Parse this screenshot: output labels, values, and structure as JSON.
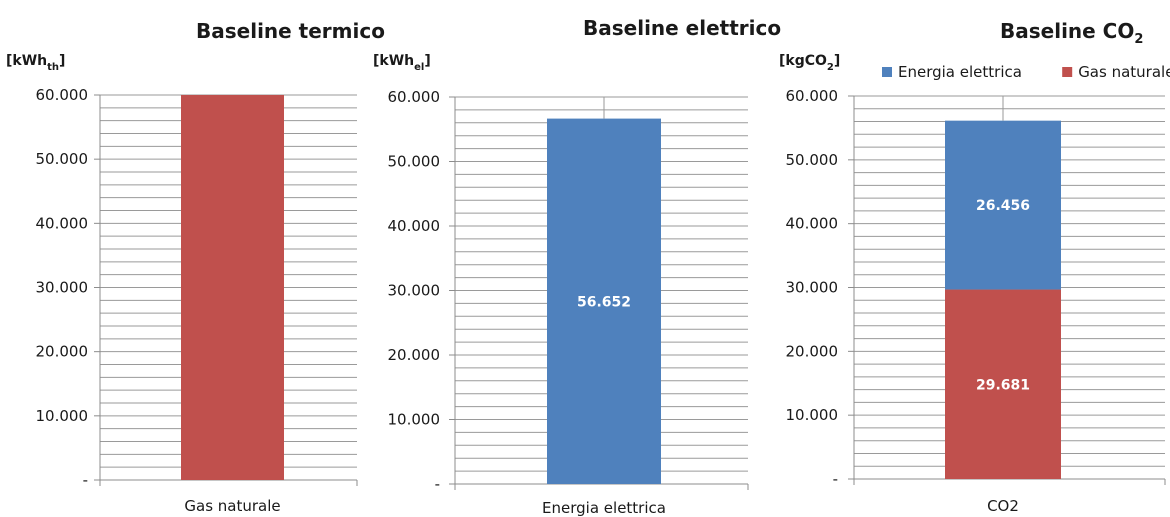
{
  "chart_data": [
    {
      "type": "bar",
      "title": "Baseline termico",
      "unit": "[kWh",
      "unit_sub": "th",
      "unit_suffix": "]",
      "categories": [
        "Gas naturale"
      ],
      "series": [
        {
          "name": "Gas naturale",
          "values": [
            60000
          ],
          "color": "#c0504d",
          "label": ""
        }
      ],
      "ylim": [
        0,
        60000
      ],
      "y_ticks": [
        "-",
        "10.000",
        "20.000",
        "30.000",
        "40.000",
        "50.000",
        "60.000"
      ],
      "grid": true,
      "legend": "none"
    },
    {
      "type": "bar",
      "title": "Baseline elettrico",
      "unit": "[kWh",
      "unit_sub": "el",
      "unit_suffix": "]",
      "categories": [
        "Energia elettrica"
      ],
      "series": [
        {
          "name": "Energia elettrica",
          "values": [
            56652
          ],
          "color": "#4f81bd",
          "label": "56.652"
        }
      ],
      "ylim": [
        0,
        60000
      ],
      "y_ticks": [
        "-",
        "10.000",
        "20.000",
        "30.000",
        "40.000",
        "50.000",
        "60.000"
      ],
      "grid": true,
      "legend": "none"
    },
    {
      "type": "bar",
      "stacked": true,
      "title": "Baseline CO",
      "title_sub": "2",
      "unit": "[kgCO",
      "unit_sub": "2",
      "unit_suffix": "]",
      "categories": [
        "CO2"
      ],
      "series": [
        {
          "name": "Gas naturale",
          "values": [
            29681
          ],
          "color": "#c0504d",
          "label": "29.681"
        },
        {
          "name": "Energia elettrica",
          "values": [
            26456
          ],
          "color": "#4f81bd",
          "label": "26.456"
        }
      ],
      "legend_order": [
        "Energia elettrica",
        "Gas naturale"
      ],
      "ylim": [
        0,
        60000
      ],
      "y_ticks": [
        "-",
        "10.000",
        "20.000",
        "30.000",
        "40.000",
        "50.000",
        "60.000"
      ],
      "grid": true,
      "legend": "top"
    }
  ]
}
